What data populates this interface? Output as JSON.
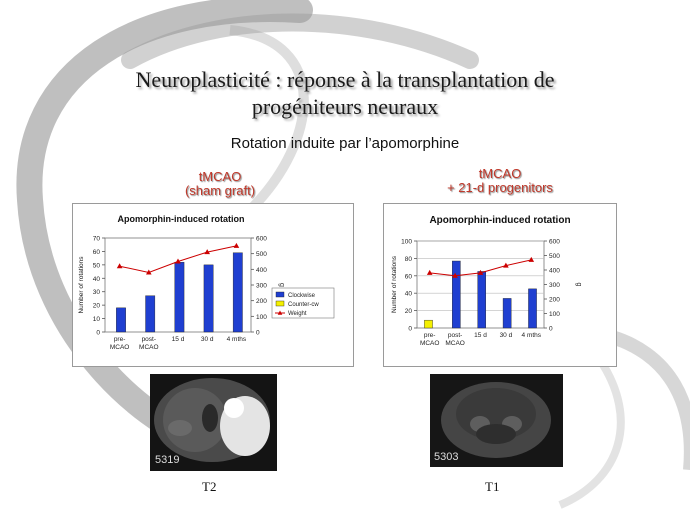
{
  "slide": {
    "title_line1": "Neuroplasticité : réponse à la transplantation de",
    "title_line2": "progéniteurs neuraux",
    "subtitle": "Rotation induite par l’apomorphine",
    "left_group": {
      "line1": "tMCAO",
      "line2": "(sham graft)"
    },
    "right_group": {
      "line1": "tMCAO",
      "line2": "+ 21-d progenitors"
    }
  },
  "images": [
    {
      "id_label": "5319",
      "caption": "T2"
    },
    {
      "id_label": "5303",
      "caption": "T1"
    }
  ],
  "colors": {
    "clockwise": "#1f3fd1",
    "counter": "#f4f000",
    "weight": "#cc0000",
    "group_label": "#c0392b"
  },
  "chart_data": [
    {
      "type": "bar",
      "title": "Apomorphin-induced rotation",
      "categories": [
        [
          "pre-",
          "MCAO"
        ],
        [
          "post-",
          "MCAO"
        ],
        [
          "15 d"
        ],
        [
          "30 d"
        ],
        [
          "4 mths"
        ]
      ],
      "series": [
        {
          "name": "Clockwise",
          "type": "bar",
          "axis": "left",
          "values": [
            18,
            27,
            52,
            50,
            59
          ]
        },
        {
          "name": "Counter-cw",
          "type": "bar",
          "axis": "left",
          "values": [
            0,
            0,
            0,
            0,
            0
          ]
        },
        {
          "name": "Weight",
          "type": "line",
          "axis": "right",
          "values": [
            420,
            380,
            450,
            510,
            550
          ]
        }
      ],
      "ylabel": "Number of rotations",
      "y2label": "g",
      "ylim": [
        0,
        70
      ],
      "yticks": [
        0,
        10,
        20,
        30,
        40,
        50,
        60,
        70
      ],
      "y2lim": [
        0,
        600
      ],
      "y2ticks": [
        0,
        100,
        200,
        300,
        400,
        500,
        600
      ],
      "legend": "right",
      "grid": false
    },
    {
      "type": "bar",
      "title": "Apomorphin-induced rotation",
      "categories": [
        [
          "pre-",
          "MCAO"
        ],
        [
          "post-",
          "MCAO"
        ],
        [
          "15 d"
        ],
        [
          "30 d"
        ],
        [
          "4 mths"
        ]
      ],
      "series": [
        {
          "name": "Clockwise",
          "type": "bar",
          "axis": "left",
          "values": [
            0,
            77,
            65,
            34,
            45
          ]
        },
        {
          "name": "Counter-cw",
          "type": "bar",
          "axis": "left",
          "values": [
            9,
            0,
            0,
            0,
            0
          ]
        },
        {
          "name": "Weight",
          "type": "line",
          "axis": "right",
          "values": [
            380,
            360,
            380,
            430,
            470
          ]
        }
      ],
      "ylabel": "Number of rotations",
      "y2label": "g",
      "ylim": [
        0,
        100
      ],
      "yticks": [
        0,
        20,
        40,
        60,
        80,
        100
      ],
      "y2lim": [
        0,
        600
      ],
      "y2ticks": [
        0,
        100,
        200,
        300,
        400,
        500,
        600
      ],
      "legend": "none",
      "grid": true
    }
  ]
}
